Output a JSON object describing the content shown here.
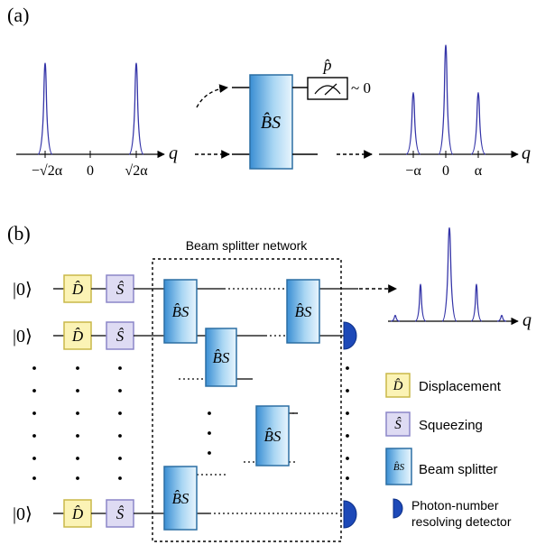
{
  "panel_a": {
    "label": "(a)",
    "left_plot": {
      "axis_label": "q",
      "ticks": [
        "−√2α",
        "0",
        "√2α"
      ]
    },
    "beam_splitter": {
      "label": "B̂S"
    },
    "measurement": {
      "operator": "p̂",
      "result": "~ 0"
    },
    "right_plot": {
      "axis_label": "q",
      "ticks": [
        "−α",
        "0",
        "α"
      ]
    }
  },
  "panel_b": {
    "label": "(b)",
    "network_title": "Beam splitter network",
    "input_state": "|0⟩",
    "displacement_gate": "D̂",
    "squeezing_gate": "Ŝ",
    "beam_splitter_gate": "B̂S",
    "output_plot": {
      "axis_label": "q"
    },
    "legend": [
      {
        "symbol": "D̂",
        "text": "Displacement"
      },
      {
        "symbol": "Ŝ",
        "text": "Squeezing"
      },
      {
        "symbol": "B̂S",
        "text": "Beam splitter"
      },
      {
        "symbol": "detector",
        "text_lines": [
          "Photon-number",
          "resolving detector"
        ]
      }
    ]
  },
  "colors": {
    "peak": "#3535a8",
    "displacement_fill": "#fbf3b5",
    "displacement_stroke": "#c9b848",
    "squeezing_fill": "#dedbf3",
    "squeezing_stroke": "#8b86c8",
    "beam_splitter_fill": "#7cbfe8",
    "beam_splitter_stroke": "#2b6ea3",
    "detector": "#1d49b8"
  }
}
